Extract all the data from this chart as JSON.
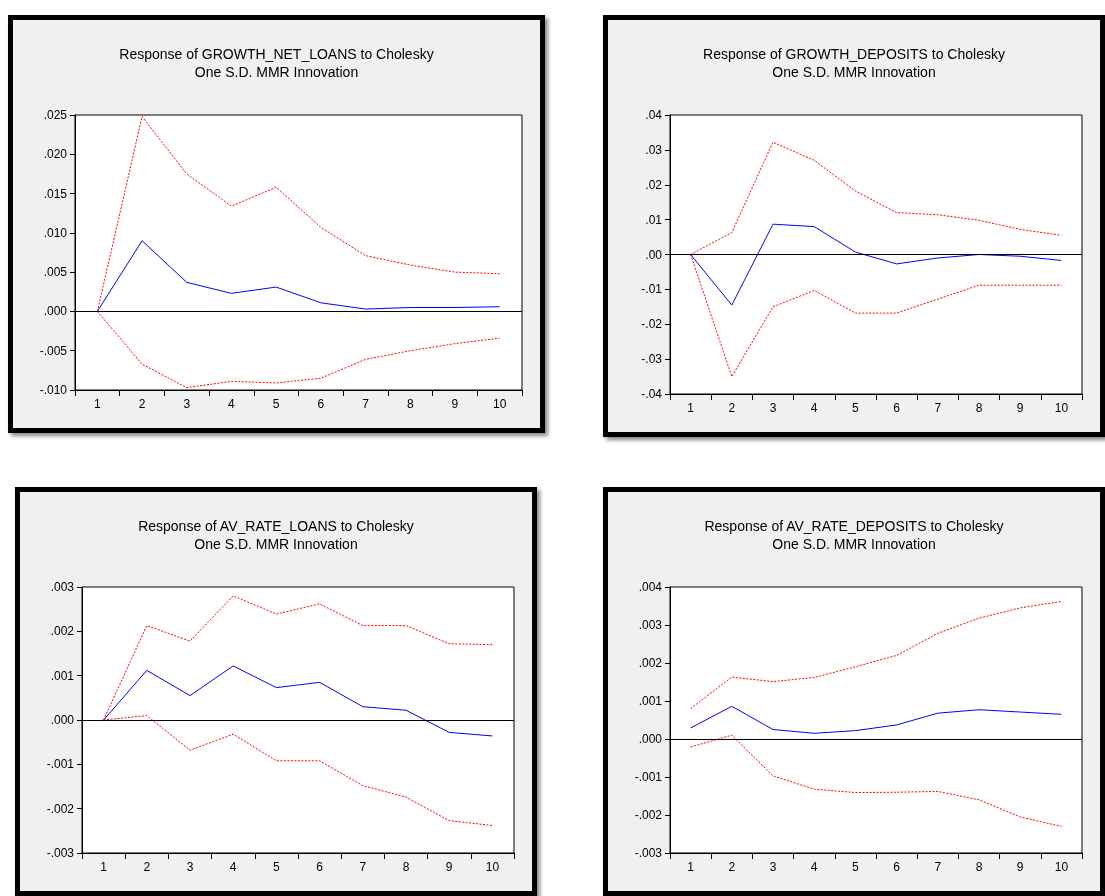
{
  "chart_data": [
    {
      "type": "line",
      "title": "Response of GROWTH_NET_LOANS to Cholesky",
      "subtitle": "One S.D. MMR Innovation",
      "categories": [
        "1",
        "2",
        "3",
        "4",
        "5",
        "6",
        "7",
        "8",
        "9",
        "10"
      ],
      "ylim": [
        -0.01,
        0.025
      ],
      "yticks": [
        {
          "value": -0.01,
          "label": "-.010"
        },
        {
          "value": -0.005,
          "label": "-.005"
        },
        {
          "value": 0,
          "label": ".000"
        },
        {
          "value": 0.005,
          "label": ".005"
        },
        {
          "value": 0.01,
          "label": ".010"
        },
        {
          "value": 0.015,
          "label": ".015"
        },
        {
          "value": 0.02,
          "label": ".020"
        },
        {
          "value": 0.025,
          "label": ".025"
        }
      ],
      "grid": false,
      "marker": "none",
      "ref_lines": [
        {
          "axis": "y",
          "value": 0,
          "color": "#000000",
          "line_style": "solid"
        }
      ],
      "series": [
        {
          "color": "#0000ff",
          "line_style": "solid",
          "values": [
            0,
            0.009,
            0.0037,
            0.0023,
            0.0031,
            0.0011,
            0.0003,
            0.0005,
            0.0005,
            0.0006
          ]
        },
        {
          "color": "#ff0000",
          "line_style": "dashed",
          "values": [
            0,
            0.0248,
            0.0175,
            0.0134,
            0.0158,
            0.0107,
            0.0071,
            0.0059,
            0.005,
            0.0048
          ]
        },
        {
          "color": "#ff0000",
          "line_style": "dashed",
          "values": [
            0,
            -0.0067,
            -0.0097,
            -0.0089,
            -0.0091,
            -0.0085,
            -0.0061,
            -0.005,
            -0.0041,
            -0.0034
          ]
        }
      ]
    },
    {
      "type": "line",
      "title": "Response of GROWTH_DEPOSITS to Cholesky",
      "subtitle": "One S.D. MMR Innovation",
      "categories": [
        "1",
        "2",
        "3",
        "4",
        "5",
        "6",
        "7",
        "8",
        "9",
        "10"
      ],
      "ylim": [
        -0.04,
        0.04
      ],
      "yticks": [
        {
          "value": -0.04,
          "label": "-.04"
        },
        {
          "value": -0.03,
          "label": "-.03"
        },
        {
          "value": -0.02,
          "label": "-.02"
        },
        {
          "value": -0.01,
          "label": "-.01"
        },
        {
          "value": 0,
          "label": ".00"
        },
        {
          "value": 0.01,
          "label": ".01"
        },
        {
          "value": 0.02,
          "label": ".02"
        },
        {
          "value": 0.03,
          "label": ".03"
        },
        {
          "value": 0.04,
          "label": ".04"
        }
      ],
      "grid": false,
      "marker": "none",
      "ref_lines": [
        {
          "axis": "y",
          "value": 0,
          "color": "#000000",
          "line_style": "solid"
        }
      ],
      "series": [
        {
          "color": "#0000ff",
          "line_style": "solid",
          "values": [
            0,
            -0.0145,
            0.0087,
            0.008,
            0.0007,
            -0.0027,
            -0.001,
            0,
            -0.0005,
            -0.0017
          ]
        },
        {
          "color": "#ff0000",
          "line_style": "dashed",
          "values": [
            0,
            0.0063,
            0.0322,
            0.027,
            0.0182,
            0.012,
            0.0114,
            0.0098,
            0.0072,
            0.0055
          ]
        },
        {
          "color": "#ff0000",
          "line_style": "dashed",
          "values": [
            0,
            -0.035,
            -0.015,
            -0.0103,
            -0.0168,
            -0.0168,
            -0.0128,
            -0.0088,
            -0.0088,
            -0.0088
          ]
        }
      ]
    },
    {
      "type": "line",
      "title": "Response of AV_RATE_LOANS to Cholesky",
      "subtitle": "One S.D. MMR Innovation",
      "categories": [
        "1",
        "2",
        "3",
        "4",
        "5",
        "6",
        "7",
        "8",
        "9",
        "10"
      ],
      "ylim": [
        -0.003,
        0.003
      ],
      "yticks": [
        {
          "value": -0.003,
          "label": "-.003"
        },
        {
          "value": -0.002,
          "label": "-.002"
        },
        {
          "value": -0.001,
          "label": "-.001"
        },
        {
          "value": 0,
          "label": ".000"
        },
        {
          "value": 0.001,
          "label": ".001"
        },
        {
          "value": 0.002,
          "label": ".002"
        },
        {
          "value": 0.003,
          "label": ".003"
        }
      ],
      "grid": false,
      "marker": "none",
      "ref_lines": [
        {
          "axis": "y",
          "value": 0,
          "color": "#000000",
          "line_style": "solid"
        }
      ],
      "series": [
        {
          "color": "#0000ff",
          "line_style": "solid",
          "values": [
            0,
            0.00112,
            0.00055,
            0.00122,
            0.00073,
            0.00085,
            0.0003,
            0.00022,
            -0.00028,
            -0.00036
          ]
        },
        {
          "color": "#ff0000",
          "line_style": "dashed",
          "values": [
            0,
            0.00213,
            0.00178,
            0.0028,
            0.00239,
            0.00262,
            0.00213,
            0.00213,
            0.00172,
            0.0017
          ]
        },
        {
          "color": "#ff0000",
          "line_style": "dashed",
          "values": [
            0,
            0.0001,
            -0.00068,
            -0.00032,
            -0.00092,
            -0.00092,
            -0.00148,
            -0.00174,
            -0.00227,
            -0.00238
          ]
        }
      ]
    },
    {
      "type": "line",
      "title": "Response of AV_RATE_DEPOSITS to Cholesky",
      "subtitle": "One S.D. MMR Innovation",
      "categories": [
        "1",
        "2",
        "3",
        "4",
        "5",
        "6",
        "7",
        "8",
        "9",
        "10"
      ],
      "ylim": [
        -0.003,
        0.004
      ],
      "yticks": [
        {
          "value": -0.003,
          "label": "-.003"
        },
        {
          "value": -0.002,
          "label": "-.002"
        },
        {
          "value": -0.001,
          "label": "-.001"
        },
        {
          "value": 0,
          "label": ".000"
        },
        {
          "value": 0.001,
          "label": ".001"
        },
        {
          "value": 0.002,
          "label": ".002"
        },
        {
          "value": 0.003,
          "label": ".003"
        },
        {
          "value": 0.004,
          "label": ".004"
        }
      ],
      "grid": false,
      "marker": "none",
      "ref_lines": [
        {
          "axis": "y",
          "value": 0,
          "color": "#000000",
          "line_style": "solid"
        }
      ],
      "series": [
        {
          "color": "#0000ff",
          "line_style": "solid",
          "values": [
            0.00029,
            0.00086,
            0.00025,
            0.00015,
            0.00022,
            0.00037,
            0.00068,
            0.00077,
            0.00071,
            0.00065
          ]
        },
        {
          "color": "#ff0000",
          "line_style": "dashed",
          "values": [
            0.0008,
            0.00163,
            0.00151,
            0.00162,
            0.0019,
            0.0022,
            0.00278,
            0.00318,
            0.00345,
            0.00362
          ]
        },
        {
          "color": "#ff0000",
          "line_style": "dashed",
          "values": [
            -0.00021,
            0.0001,
            -0.00097,
            -0.00132,
            -0.00141,
            -0.0014,
            -0.00138,
            -0.0016,
            -0.00205,
            -0.0023
          ]
        }
      ]
    }
  ]
}
